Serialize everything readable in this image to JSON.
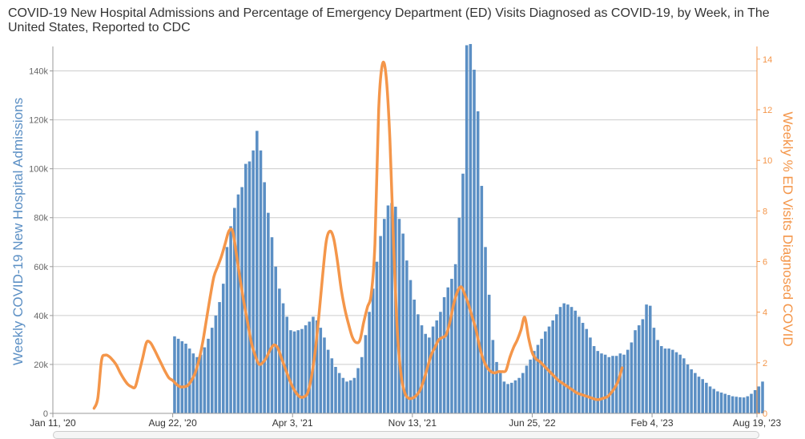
{
  "title": "COVID-19 New Hospital Admissions and Percentage of Emergency Department (ED) Visits Diagnosed as COVID-19, by Week, in The United States, Reported to CDC",
  "colors": {
    "bars": "#5b8fc4",
    "line": "#f4964a",
    "grid": "#cccccc",
    "left_axis": "#5b8fc4",
    "right_axis": "#f4964a"
  },
  "chart_data": {
    "type": "bar",
    "title": "COVID-19 New Hospital Admissions and Percentage of Emergency Department (ED) Visits Diagnosed as COVID-19, by Week, in The United States, Reported to CDC",
    "ylabel": "Weekly COVID-19 New Hospital Admissions",
    "ylabel_right": "Weekly % ED Visits Diagnosed COVID",
    "ylim": [
      0,
      150000
    ],
    "ylim_right": [
      0,
      14.5
    ],
    "grid": true,
    "x_tick_labels": [
      "Jan 11, '20",
      "Aug 22, '20",
      "Apr 3, '21",
      "Nov 13, '21",
      "Jun 25, '22",
      "Feb 4, '23",
      "Aug 19, '23"
    ],
    "y_tick_labels": [
      "0",
      "20k",
      "40k",
      "60k",
      "80k",
      "100k",
      "120k",
      "140k"
    ],
    "y_tick_values": [
      0,
      20000,
      40000,
      60000,
      80000,
      100000,
      120000,
      140000
    ],
    "y_right_tick_labels": [
      "0",
      "2",
      "4",
      "6",
      "8",
      "10",
      "12",
      "14"
    ],
    "y_right_tick_values": [
      0,
      2,
      4,
      6,
      8,
      10,
      12,
      14
    ],
    "x_range_weeks": [
      0,
      188
    ],
    "x_tick_weeks": [
      0,
      32,
      64,
      96,
      128,
      160,
      188
    ],
    "series": [
      {
        "name": "Weekly COVID-19 New Hospital Admissions",
        "kind": "bar",
        "start_week": 32,
        "values": [
          31500,
          30500,
          29500,
          28500,
          26500,
          24500,
          23000,
          24000,
          27000,
          30500,
          35000,
          40000,
          45500,
          53000,
          68000,
          76500,
          84000,
          89500,
          92500,
          102000,
          103000,
          107500,
          115500,
          107500,
          94500,
          82000,
          72000,
          60000,
          51000,
          45000,
          39500,
          34000,
          33500,
          34000,
          34500,
          36000,
          37500,
          39500,
          38000,
          35000,
          31000,
          26000,
          22500,
          19000,
          16500,
          14500,
          13000,
          13500,
          14500,
          18500,
          23000,
          32000,
          41500,
          51000,
          62000,
          72500,
          79500,
          85000,
          86000,
          84500,
          79500,
          73500,
          62500,
          54500,
          46500,
          40500,
          36000,
          32500,
          31000,
          35500,
          38000,
          41500,
          47500,
          51500,
          55000,
          61000,
          80000,
          98000,
          150500,
          151000,
          140500,
          123500,
          93000,
          68000,
          48500,
          30000,
          21000,
          16500,
          13000,
          12000,
          12500,
          13500,
          14500,
          16500,
          19500,
          22000,
          25500,
          28000,
          30500,
          33500,
          35500,
          38000,
          40500,
          43500,
          45000,
          44500,
          43500,
          42000,
          39500,
          37000,
          34500,
          31000,
          27500,
          25500,
          24500,
          24000,
          23000,
          23500,
          23500,
          24500,
          24000,
          26000,
          29000,
          34000,
          36000,
          38500,
          44500,
          44000,
          35000,
          30000,
          27500,
          26500,
          26500,
          26000,
          25000,
          24000,
          22500,
          20000,
          18000,
          16500,
          15000,
          14000,
          12500,
          11000,
          10000,
          9000,
          8500,
          8000,
          7500,
          7000,
          6800,
          6600,
          6500,
          7000,
          8000,
          9500,
          11000,
          13000
        ]
      },
      {
        "name": "Weekly % ED Visits Diagnosed COVID",
        "kind": "line",
        "points": [
          [
            11,
            0.2
          ],
          [
            12,
            0.6
          ],
          [
            13,
            2.1
          ],
          [
            14,
            2.3
          ],
          [
            15,
            2.25
          ],
          [
            16,
            2.1
          ],
          [
            17,
            1.9
          ],
          [
            18,
            1.6
          ],
          [
            19,
            1.35
          ],
          [
            20,
            1.15
          ],
          [
            21,
            1.05
          ],
          [
            22,
            1.05
          ],
          [
            23,
            1.6
          ],
          [
            24,
            2.2
          ],
          [
            25,
            2.8
          ],
          [
            26,
            2.8
          ],
          [
            27,
            2.55
          ],
          [
            28,
            2.25
          ],
          [
            29,
            1.95
          ],
          [
            30,
            1.65
          ],
          [
            31,
            1.4
          ],
          [
            32,
            1.3
          ],
          [
            33,
            1.15
          ],
          [
            34,
            1.05
          ],
          [
            35,
            1.05
          ],
          [
            36,
            1.1
          ],
          [
            37,
            1.3
          ],
          [
            38,
            1.6
          ],
          [
            39,
            2.1
          ],
          [
            40,
            2.8
          ],
          [
            41,
            3.7
          ],
          [
            42,
            4.6
          ],
          [
            43,
            5.4
          ],
          [
            44,
            5.8
          ],
          [
            45,
            6.2
          ],
          [
            46,
            6.7
          ],
          [
            47,
            7.2
          ],
          [
            48,
            7.2
          ],
          [
            49,
            6.3
          ],
          [
            50,
            5.3
          ],
          [
            51,
            4.4
          ],
          [
            52,
            3.6
          ],
          [
            53,
            2.8
          ],
          [
            54,
            2.3
          ],
          [
            55,
            1.95
          ],
          [
            56,
            2.0
          ],
          [
            57,
            2.2
          ],
          [
            58,
            2.5
          ],
          [
            59,
            2.7
          ],
          [
            60,
            2.6
          ],
          [
            61,
            2.2
          ],
          [
            62,
            1.8
          ],
          [
            63,
            1.4
          ],
          [
            64,
            1.05
          ],
          [
            65,
            0.8
          ],
          [
            66,
            0.65
          ],
          [
            67,
            0.65
          ],
          [
            68,
            0.8
          ],
          [
            69,
            1.4
          ],
          [
            70,
            2.4
          ],
          [
            71,
            3.8
          ],
          [
            72,
            5.4
          ],
          [
            73,
            6.8
          ],
          [
            74,
            7.2
          ],
          [
            75,
            6.9
          ],
          [
            76,
            6.0
          ],
          [
            77,
            4.9
          ],
          [
            78,
            4.1
          ],
          [
            79,
            3.5
          ],
          [
            80,
            3.0
          ],
          [
            81,
            2.8
          ],
          [
            82,
            2.9
          ],
          [
            83,
            3.6
          ],
          [
            84,
            4.2
          ],
          [
            85,
            4.7
          ],
          [
            86,
            6.7
          ],
          [
            87,
            12.0
          ],
          [
            88,
            13.8
          ],
          [
            89,
            13.3
          ],
          [
            90,
            10.8
          ],
          [
            91,
            6.6
          ],
          [
            92,
            3.2
          ],
          [
            93,
            1.5
          ],
          [
            94,
            0.8
          ],
          [
            95,
            0.6
          ],
          [
            96,
            0.6
          ],
          [
            97,
            0.7
          ],
          [
            98,
            0.9
          ],
          [
            99,
            1.3
          ],
          [
            100,
            1.8
          ],
          [
            101,
            2.3
          ],
          [
            102,
            2.6
          ],
          [
            103,
            2.9
          ],
          [
            104,
            3.0
          ],
          [
            105,
            3.1
          ],
          [
            106,
            3.6
          ],
          [
            107,
            4.3
          ],
          [
            108,
            4.8
          ],
          [
            109,
            5.0
          ],
          [
            110,
            4.7
          ],
          [
            111,
            4.3
          ],
          [
            112,
            3.8
          ],
          [
            113,
            3.3
          ],
          [
            114,
            2.6
          ],
          [
            115,
            2.1
          ],
          [
            116,
            1.8
          ],
          [
            117,
            1.65
          ],
          [
            118,
            1.6
          ],
          [
            119,
            1.65
          ],
          [
            120,
            1.65
          ],
          [
            121,
            1.7
          ],
          [
            122,
            2.2
          ],
          [
            123,
            2.6
          ],
          [
            124,
            2.9
          ],
          [
            125,
            3.3
          ],
          [
            126,
            3.8
          ],
          [
            127,
            3.0
          ],
          [
            128,
            2.4
          ],
          [
            129,
            2.15
          ],
          [
            130,
            2.05
          ],
          [
            131,
            1.9
          ],
          [
            132,
            1.75
          ],
          [
            133,
            1.6
          ],
          [
            134,
            1.45
          ],
          [
            135,
            1.3
          ],
          [
            136,
            1.2
          ],
          [
            137,
            1.1
          ],
          [
            138,
            1.0
          ],
          [
            139,
            0.9
          ],
          [
            140,
            0.8
          ],
          [
            141,
            0.75
          ],
          [
            142,
            0.7
          ],
          [
            143,
            0.65
          ],
          [
            144,
            0.6
          ],
          [
            145,
            0.55
          ],
          [
            146,
            0.55
          ],
          [
            147,
            0.6
          ],
          [
            148,
            0.65
          ],
          [
            149,
            0.8
          ],
          [
            150,
            1.0
          ],
          [
            151,
            1.3
          ],
          [
            152,
            1.8
          ]
        ]
      }
    ]
  }
}
